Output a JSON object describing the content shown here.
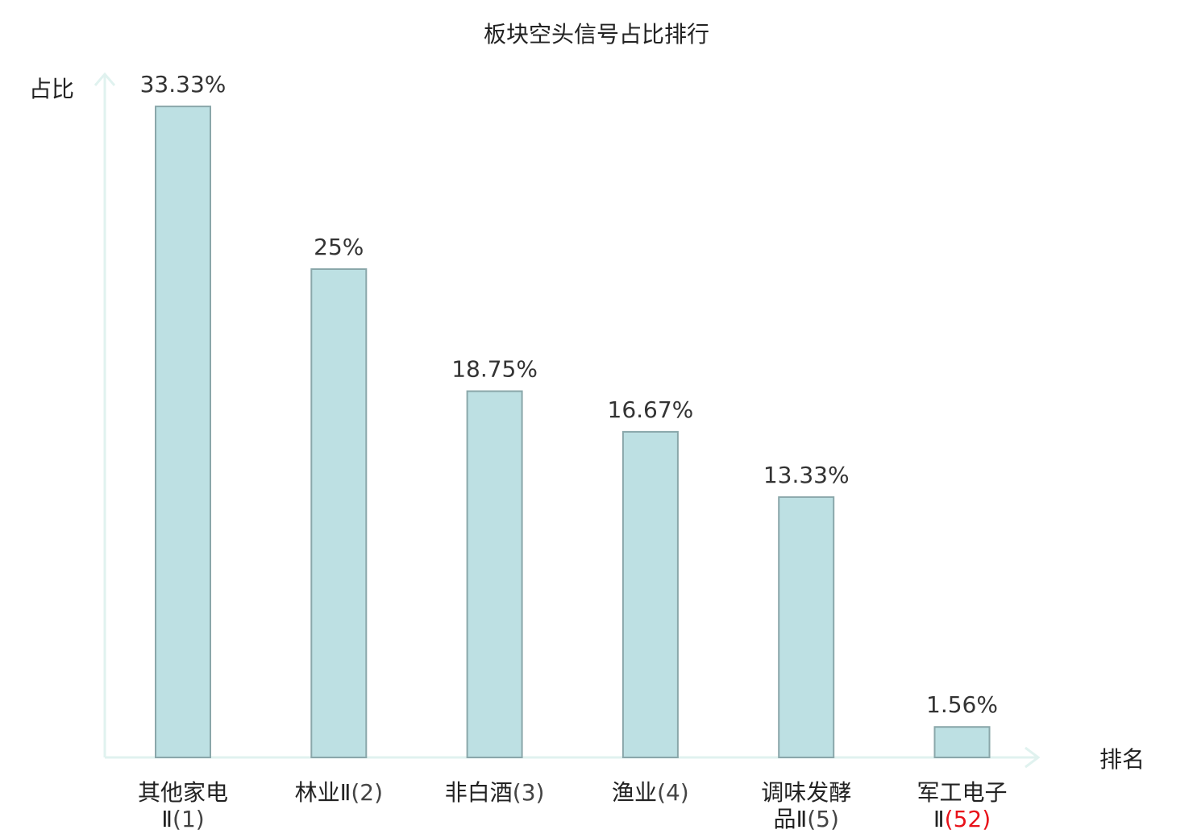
{
  "chart_data": {
    "type": "bar",
    "title": "板块空头信号占比排行",
    "ylabel": "占比",
    "xlabel": "排名",
    "ylim": [
      0,
      35
    ],
    "grid": false,
    "legend": "none",
    "categories": [
      {
        "name_lines": [
          "其他家电",
          "Ⅱ"
        ],
        "rank": "(1)",
        "highlight": false
      },
      {
        "name_lines": [
          "林业Ⅱ"
        ],
        "rank": "(2)",
        "highlight": false
      },
      {
        "name_lines": [
          "非白酒"
        ],
        "rank": "(3)",
        "highlight": false
      },
      {
        "name_lines": [
          "渔业"
        ],
        "rank": "(4)",
        "highlight": false
      },
      {
        "name_lines": [
          "调味发酵",
          "品Ⅱ"
        ],
        "rank": "(5)",
        "highlight": false
      },
      {
        "name_lines": [
          "军工电子",
          "Ⅱ"
        ],
        "rank": "(52)",
        "highlight": true
      }
    ],
    "values": [
      33.33,
      25,
      18.75,
      16.67,
      13.33,
      1.56
    ],
    "value_labels": [
      "33.33%",
      "25%",
      "18.75%",
      "16.67%",
      "13.33%",
      "1.56%"
    ]
  },
  "colors": {
    "bar_fill": "#bde0e3",
    "bar_stroke": "#8aa7aa",
    "axis": "#e0f2ef",
    "highlight_text": "#e8121a",
    "text": "#222222"
  }
}
